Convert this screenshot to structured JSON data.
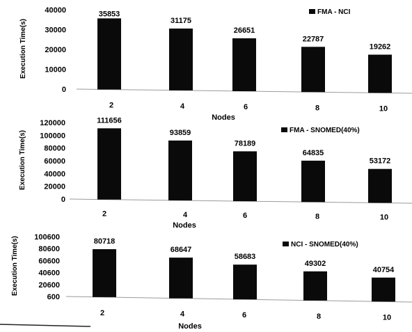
{
  "chart_data": [
    {
      "type": "bar",
      "categories": [
        "2",
        "4",
        "6",
        "8",
        "10"
      ],
      "series": [
        {
          "name": "FMA - NCI",
          "values": [
            35853,
            31175,
            26651,
            22787,
            19262
          ]
        }
      ],
      "data_labels": [
        "35853",
        "31175",
        "26651",
        "22787",
        "19262"
      ],
      "yticks": [
        "0",
        "10000",
        "20000",
        "30000",
        "40000"
      ],
      "ylim": [
        0,
        40000
      ],
      "xlabel": "Nodes",
      "ylabel": "Execution Time(s)",
      "legend_position": "top-right",
      "grid": false
    },
    {
      "type": "bar",
      "categories": [
        "2",
        "4",
        "6",
        "8",
        "10"
      ],
      "series": [
        {
          "name": "FMA - SNOMED(40%)",
          "values": [
            111656,
            93859,
            78189,
            64835,
            53172
          ]
        }
      ],
      "data_labels": [
        "111656",
        "93859",
        "78189",
        "64835",
        "53172"
      ],
      "yticks": [
        "0",
        "20000",
        "40000",
        "60000",
        "80000",
        "100000",
        "120000"
      ],
      "ylim": [
        0,
        120000
      ],
      "xlabel": "Nodes",
      "ylabel": "Execution Time(s)",
      "legend_position": "top-right",
      "grid": false
    },
    {
      "type": "bar",
      "categories": [
        "2",
        "4",
        "6",
        "8",
        "10"
      ],
      "series": [
        {
          "name": "NCI - SNOMED(40%)",
          "values": [
            80718,
            68647,
            58683,
            49302,
            40754
          ]
        }
      ],
      "data_labels": [
        "80718",
        "68647",
        "58683",
        "49302",
        "40754"
      ],
      "yticks": [
        "600",
        "20600",
        "40600",
        "60600",
        "80600",
        "100600"
      ],
      "ylim": [
        600,
        100600
      ],
      "xlabel": "Nodes",
      "ylabel": "Execution Time(s)",
      "legend_position": "top-right",
      "grid": false
    }
  ],
  "colors": {
    "bar": "#0a0a0a",
    "axis": "#9a9a9a"
  }
}
